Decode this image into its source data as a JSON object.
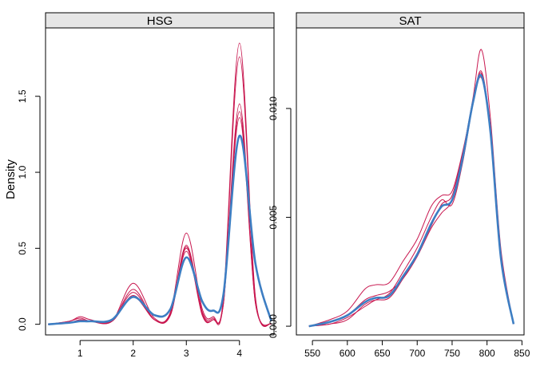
{
  "chart_data": {
    "type": "line",
    "ylabel": "Density",
    "line_colors": {
      "imputed": "#c8174f",
      "observed": "#3d7ec3"
    },
    "panels": [
      {
        "title": "HSG",
        "xlim": [
          0.35,
          4.65
        ],
        "ylim": [
          -0.07,
          1.95
        ],
        "x_ticks": [
          "1",
          "2",
          "3",
          "4"
        ],
        "y_ticks": [
          "0.0",
          "0.5",
          "1.0",
          "1.5"
        ],
        "series": [
          {
            "role": "imputed",
            "x": [
              0.4,
              0.8,
              1.0,
              1.2,
              1.6,
              2.0,
              2.4,
              2.7,
              3.0,
              3.3,
              3.5,
              3.7,
              4.0,
              4.3,
              4.6
            ],
            "y": [
              0.0,
              0.02,
              0.05,
              0.03,
              0.02,
              0.27,
              0.04,
              0.08,
              0.6,
              0.1,
              0.05,
              0.18,
              1.85,
              0.18,
              0.0
            ]
          },
          {
            "role": "imputed",
            "x": [
              0.4,
              0.8,
              1.0,
              1.2,
              1.6,
              2.0,
              2.4,
              2.7,
              3.0,
              3.3,
              3.5,
              3.7,
              4.0,
              4.3,
              4.6
            ],
            "y": [
              0.0,
              0.02,
              0.04,
              0.02,
              0.02,
              0.23,
              0.03,
              0.07,
              0.52,
              0.08,
              0.04,
              0.16,
              1.76,
              0.17,
              0.0
            ]
          },
          {
            "role": "imputed",
            "x": [
              0.4,
              0.8,
              1.0,
              1.2,
              1.6,
              2.0,
              2.4,
              2.7,
              3.0,
              3.3,
              3.5,
              3.7,
              4.0,
              4.3,
              4.6
            ],
            "y": [
              0.0,
              0.01,
              0.03,
              0.02,
              0.02,
              0.21,
              0.03,
              0.06,
              0.5,
              0.07,
              0.03,
              0.15,
              1.45,
              0.15,
              0.0
            ]
          },
          {
            "role": "imputed",
            "x": [
              0.4,
              0.8,
              1.0,
              1.2,
              1.6,
              2.0,
              2.4,
              2.7,
              3.0,
              3.3,
              3.5,
              3.7,
              4.0,
              4.3,
              4.6
            ],
            "y": [
              0.0,
              0.01,
              0.03,
              0.02,
              0.02,
              0.19,
              0.03,
              0.06,
              0.48,
              0.06,
              0.03,
              0.14,
              1.4,
              0.14,
              0.0
            ]
          },
          {
            "role": "imputed",
            "x": [
              0.4,
              0.8,
              1.0,
              1.2,
              1.6,
              2.0,
              2.4,
              2.7,
              3.0,
              3.3,
              3.5,
              3.7,
              4.0,
              4.3,
              4.6
            ],
            "y": [
              0.0,
              0.01,
              0.02,
              0.02,
              0.02,
              0.18,
              0.03,
              0.06,
              0.51,
              0.06,
              0.03,
              0.14,
              1.36,
              0.14,
              0.0
            ]
          },
          {
            "role": "observed",
            "x": [
              0.4,
              0.8,
              1.0,
              1.2,
              1.6,
              2.0,
              2.4,
              2.7,
              3.0,
              3.3,
              3.5,
              3.7,
              4.0,
              4.3,
              4.6
            ],
            "y": [
              0.0,
              0.01,
              0.02,
              0.02,
              0.03,
              0.18,
              0.06,
              0.1,
              0.44,
              0.15,
              0.09,
              0.2,
              1.24,
              0.4,
              0.02
            ]
          }
        ]
      },
      {
        "title": "SAT",
        "xlim": [
          527,
          853
        ],
        "ylim": [
          -0.0004,
          0.0137
        ],
        "x_ticks": [
          "550",
          "600",
          "650",
          "700",
          "750",
          "800",
          "850"
        ],
        "x_tick_values": [
          550,
          600,
          650,
          700,
          750,
          800,
          850
        ],
        "y_ticks": [
          "0.000",
          "0.005",
          "0.010"
        ],
        "y_tick_values": [
          0.0,
          0.005,
          0.01
        ],
        "series": [
          {
            "role": "imputed",
            "x": [
              545,
              575,
              600,
              625,
              640,
              660,
              680,
              700,
              720,
              735,
              750,
              765,
              780,
              792,
              805,
              820,
              838
            ],
            "y": [
              0.0,
              0.0002,
              0.0005,
              0.0012,
              0.0014,
              0.0016,
              0.0022,
              0.0032,
              0.0045,
              0.0052,
              0.0058,
              0.0078,
              0.0105,
              0.0127,
              0.0095,
              0.0035,
              0.0001
            ]
          },
          {
            "role": "imputed",
            "x": [
              545,
              575,
              600,
              625,
              640,
              660,
              680,
              700,
              720,
              735,
              750,
              765,
              780,
              792,
              805,
              820,
              838
            ],
            "y": [
              0.0,
              0.0003,
              0.0007,
              0.0017,
              0.0019,
              0.002,
              0.003,
              0.004,
              0.0055,
              0.006,
              0.0062,
              0.008,
              0.0103,
              0.0117,
              0.009,
              0.0032,
              0.0001
            ]
          },
          {
            "role": "imputed",
            "x": [
              545,
              575,
              600,
              625,
              640,
              660,
              680,
              700,
              720,
              735,
              750,
              765,
              780,
              792,
              805,
              820,
              838
            ],
            "y": [
              0.0,
              0.0001,
              0.0004,
              0.0009,
              0.0012,
              0.0015,
              0.0025,
              0.0036,
              0.005,
              0.0058,
              0.0056,
              0.0075,
              0.0102,
              0.0114,
              0.0088,
              0.003,
              0.0001
            ]
          },
          {
            "role": "imputed",
            "x": [
              545,
              575,
              600,
              625,
              640,
              660,
              680,
              700,
              720,
              735,
              750,
              765,
              780,
              792,
              805,
              820,
              838
            ],
            "y": [
              0.0,
              0.0001,
              0.0003,
              0.001,
              0.0012,
              0.0013,
              0.0022,
              0.0033,
              0.0046,
              0.0056,
              0.006,
              0.0079,
              0.0104,
              0.0116,
              0.009,
              0.0031,
              0.0001
            ]
          },
          {
            "role": "observed",
            "x": [
              545,
              575,
              600,
              625,
              640,
              660,
              680,
              700,
              720,
              735,
              750,
              765,
              780,
              792,
              805,
              820,
              838
            ],
            "y": [
              0.0,
              0.0002,
              0.0005,
              0.0011,
              0.0013,
              0.0014,
              0.0023,
              0.0033,
              0.0047,
              0.0055,
              0.0058,
              0.0077,
              0.0103,
              0.0115,
              0.0089,
              0.0031,
              0.0001
            ]
          }
        ]
      }
    ]
  }
}
